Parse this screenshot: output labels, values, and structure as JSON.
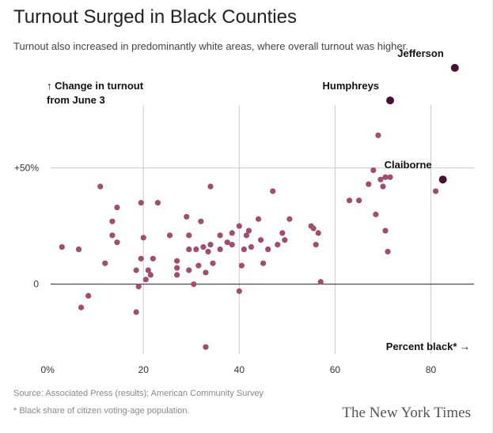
{
  "title": "Turnout Surged in Black Counties",
  "subtitle": "Turnout also increased in predominantly white areas, where overall turnout was higher.",
  "source": "Source: Associated Press (results); American Community Survey",
  "footnote": "* Black share of citizen voting-age population.",
  "credit": "The New York Times",
  "colors": {
    "point": "#a34d6e",
    "highlight": "#4a0f35",
    "grid": "#cccccc",
    "zero": "#222222"
  },
  "chart_data": {
    "type": "scatter",
    "ylabel_line1": "↑ Change in turnout",
    "ylabel_line2": "from June 3",
    "xlabel": "Percent black* →",
    "xlim": [
      -3,
      89
    ],
    "ylim": [
      -30,
      95
    ],
    "xticks": [
      {
        "value": 0,
        "label": "0%"
      },
      {
        "value": 20,
        "label": "20"
      },
      {
        "value": 40,
        "label": "40"
      },
      {
        "value": 60,
        "label": "60"
      },
      {
        "value": 80,
        "label": "80"
      }
    ],
    "yticks": [
      {
        "value": 50,
        "label": "+50%"
      },
      {
        "value": 0,
        "label": "0"
      }
    ],
    "grid": "vertical",
    "points": [
      {
        "x": 3,
        "y": 16
      },
      {
        "x": 6.5,
        "y": 15
      },
      {
        "x": 7,
        "y": -10
      },
      {
        "x": 8.5,
        "y": -5
      },
      {
        "x": 11,
        "y": 42
      },
      {
        "x": 12,
        "y": 9
      },
      {
        "x": 13.5,
        "y": 27
      },
      {
        "x": 13.5,
        "y": 21
      },
      {
        "x": 14.5,
        "y": 18
      },
      {
        "x": 14.5,
        "y": 33
      },
      {
        "x": 18.5,
        "y": 6
      },
      {
        "x": 18.5,
        "y": -12
      },
      {
        "x": 19,
        "y": -1
      },
      {
        "x": 19.5,
        "y": 11
      },
      {
        "x": 19.5,
        "y": 35
      },
      {
        "x": 20,
        "y": 20
      },
      {
        "x": 20.5,
        "y": 2
      },
      {
        "x": 21,
        "y": 6
      },
      {
        "x": 21.5,
        "y": 4
      },
      {
        "x": 22,
        "y": 11
      },
      {
        "x": 23,
        "y": 35
      },
      {
        "x": 25.5,
        "y": 21
      },
      {
        "x": 27,
        "y": 10
      },
      {
        "x": 27,
        "y": 7
      },
      {
        "x": 27,
        "y": 4
      },
      {
        "x": 29,
        "y": 29
      },
      {
        "x": 29.5,
        "y": 15
      },
      {
        "x": 29.5,
        "y": 21
      },
      {
        "x": 29.5,
        "y": 6
      },
      {
        "x": 30.5,
        "y": 0
      },
      {
        "x": 31,
        "y": 15
      },
      {
        "x": 31.5,
        "y": 8
      },
      {
        "x": 32,
        "y": 27
      },
      {
        "x": 32.5,
        "y": 16
      },
      {
        "x": 33,
        "y": 5
      },
      {
        "x": 33.5,
        "y": 14
      },
      {
        "x": 34,
        "y": 42
      },
      {
        "x": 34,
        "y": 17
      },
      {
        "x": 34.5,
        "y": 9
      },
      {
        "x": 36,
        "y": 21
      },
      {
        "x": 36,
        "y": 15
      },
      {
        "x": 37.5,
        "y": 18
      },
      {
        "x": 38.5,
        "y": 17
      },
      {
        "x": 38.5,
        "y": 22
      },
      {
        "x": 40,
        "y": 25
      },
      {
        "x": 40.5,
        "y": 8
      },
      {
        "x": 41,
        "y": 15
      },
      {
        "x": 41.5,
        "y": 21
      },
      {
        "x": 42,
        "y": 23
      },
      {
        "x": 42.5,
        "y": 16
      },
      {
        "x": 44,
        "y": 28
      },
      {
        "x": 44.5,
        "y": 19
      },
      {
        "x": 45,
        "y": 9
      },
      {
        "x": 46,
        "y": 15
      },
      {
        "x": 47,
        "y": 40
      },
      {
        "x": 48,
        "y": 17
      },
      {
        "x": 49,
        "y": 22
      },
      {
        "x": 49.5,
        "y": 19
      },
      {
        "x": 50.5,
        "y": 28
      },
      {
        "x": 55,
        "y": 25
      },
      {
        "x": 55.5,
        "y": 24
      },
      {
        "x": 56,
        "y": 17
      },
      {
        "x": 56.5,
        "y": 22
      },
      {
        "x": 57,
        "y": 1
      },
      {
        "x": 40,
        "y": -3
      },
      {
        "x": 33,
        "y": -27
      },
      {
        "x": 63,
        "y": 36
      },
      {
        "x": 65,
        "y": 36
      },
      {
        "x": 67,
        "y": 43
      },
      {
        "x": 68,
        "y": 49
      },
      {
        "x": 68.5,
        "y": 30
      },
      {
        "x": 69,
        "y": 64
      },
      {
        "x": 69.5,
        "y": 45
      },
      {
        "x": 70,
        "y": 42
      },
      {
        "x": 70.5,
        "y": 23
      },
      {
        "x": 70.5,
        "y": 46
      },
      {
        "x": 71.5,
        "y": 46
      },
      {
        "x": 71,
        "y": 14
      },
      {
        "x": 81,
        "y": 40
      }
    ],
    "highlights": [
      {
        "name": "Jefferson",
        "x": 85,
        "y": 93
      },
      {
        "name": "Humphreys",
        "x": 71.5,
        "y": 79
      },
      {
        "name": "Claiborne",
        "x": 82.5,
        "y": 45
      }
    ]
  }
}
